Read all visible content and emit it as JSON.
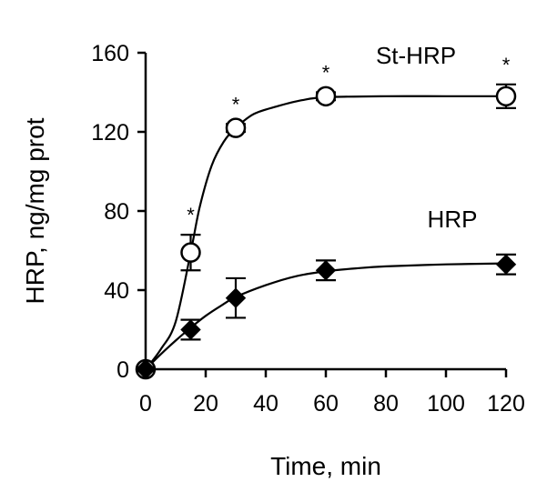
{
  "chart_data": {
    "type": "scatter",
    "title": "",
    "xlabel": "Time, min",
    "ylabel": "HRP, ng/mg prot",
    "xlim": [
      0,
      120
    ],
    "ylim": [
      0,
      160
    ],
    "xticks": [
      0,
      20,
      40,
      60,
      80,
      100,
      120
    ],
    "yticks": [
      0,
      40,
      80,
      120,
      160
    ],
    "grid": false,
    "legend": "none",
    "series": [
      {
        "name": "St-HRP",
        "marker": "open-circle",
        "color": "#000000",
        "x": [
          0,
          15,
          30,
          60,
          120
        ],
        "y": [
          0,
          59,
          122,
          138,
          138
        ],
        "err": [
          0,
          9,
          2,
          2,
          6
        ],
        "significance": [
          "",
          "*",
          "*",
          "*",
          "*"
        ],
        "fit": [
          [
            0,
            0
          ],
          [
            5,
            10
          ],
          [
            10,
            24
          ],
          [
            15,
            59
          ],
          [
            18,
            82
          ],
          [
            22,
            103
          ],
          [
            26,
            115
          ],
          [
            30,
            122
          ],
          [
            36,
            129
          ],
          [
            44,
            133
          ],
          [
            52,
            136
          ],
          [
            60,
            137.5
          ],
          [
            80,
            138
          ],
          [
            100,
            138
          ],
          [
            120,
            138
          ]
        ]
      },
      {
        "name": "HRP",
        "marker": "filled-diamond",
        "color": "#000000",
        "x": [
          0,
          15,
          30,
          60,
          120
        ],
        "y": [
          0,
          20,
          36,
          50,
          53
        ],
        "err": [
          0,
          5,
          10,
          5,
          5
        ],
        "significance": [
          "",
          "",
          "",
          "",
          ""
        ],
        "fit": [
          [
            0,
            0
          ],
          [
            5,
            7.5
          ],
          [
            10,
            14.5
          ],
          [
            15,
            21
          ],
          [
            20,
            27
          ],
          [
            25,
            32
          ],
          [
            30,
            36.5
          ],
          [
            40,
            42.5
          ],
          [
            50,
            47
          ],
          [
            60,
            49.5
          ],
          [
            70,
            51
          ],
          [
            80,
            52
          ],
          [
            100,
            53
          ],
          [
            120,
            53.5
          ]
        ]
      }
    ]
  }
}
